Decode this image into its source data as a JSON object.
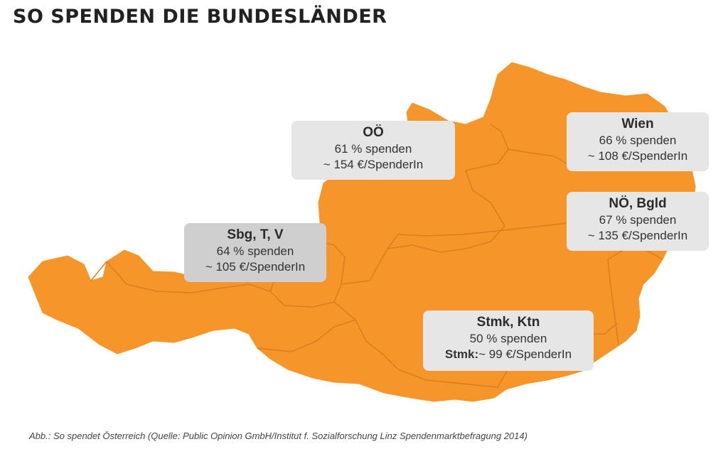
{
  "page": {
    "title": "SO SPENDEN DIE BUNDESLÄNDER",
    "caption": "Abb.: So spendet Österreich (Quelle: Public Opinion GmbH/Institut f. Sozialforschung Linz Spendenmarktbefragung 2014)"
  },
  "colors": {
    "map_fill": "#f5952a",
    "border_lines": "#d77f1f",
    "box_light": "#e6e6e6",
    "box_dark": "#cfcfcf"
  },
  "regions": {
    "ooe": {
      "name": "OÖ",
      "share": "61 % spenden",
      "amount": "~ 154 €/SpenderIn"
    },
    "wien": {
      "name": "Wien",
      "share": "66 % spenden",
      "amount": "~ 108 €/SpenderIn"
    },
    "noe": {
      "name": "NÖ, Bgld",
      "share": "67 % spenden",
      "amount": "~ 135 €/SpenderIn"
    },
    "sbg": {
      "name": "Sbg, T, V",
      "share": "64 % spenden",
      "amount": "~ 105 €/SpenderIn"
    },
    "stmk": {
      "name": "Stmk, Ktn",
      "share": "50 % spenden",
      "amount_prefix": "Stmk:",
      "amount": "~ 99 €/SpenderIn"
    }
  }
}
